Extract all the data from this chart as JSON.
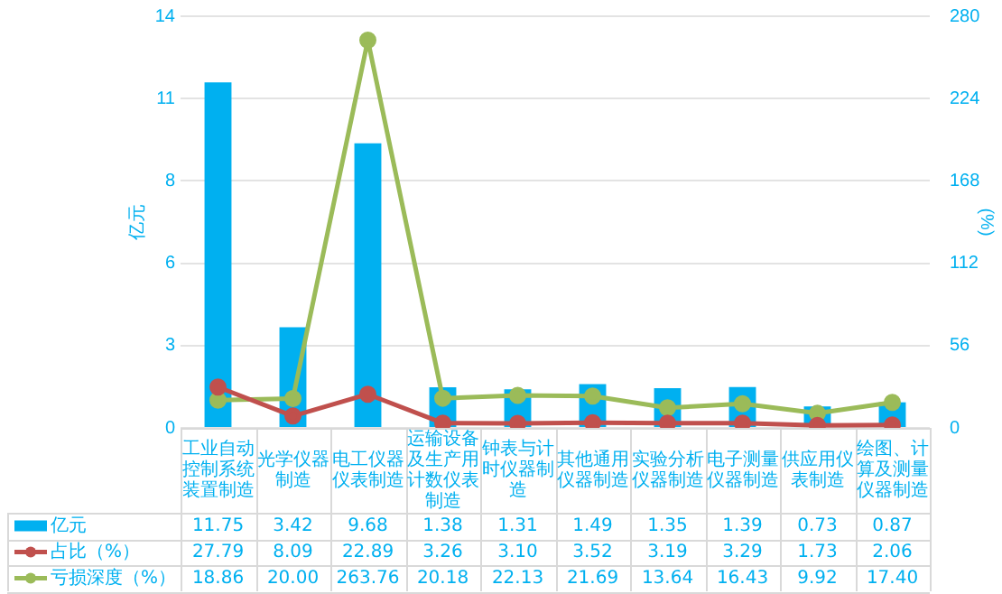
{
  "chart_data": {
    "type": "bar",
    "ylabel": "亿元",
    "y2label": "(%)",
    "categories": [
      "工业自动控制系统装置制造",
      "光学仪器制造",
      "电工仪器仪表制造",
      "运输设备及生产用计数仪表制造",
      "钟表与计时仪器制造",
      "其他通用仪器制造",
      "实验分析仪器制造",
      "电子测量仪器制造",
      "供应用仪表制造",
      "绘图、计算及测量仪器制造"
    ],
    "series": [
      {
        "name": "亿元",
        "color": "#00b0f0",
        "values": [
          11.75,
          3.42,
          9.68,
          1.38,
          1.31,
          1.49,
          1.35,
          1.39,
          0.73,
          0.87
        ],
        "value_labels": [
          "11.75",
          "3.42",
          "9.68",
          "1.38",
          "1.31",
          "1.49",
          "1.35",
          "1.39",
          "0.73",
          "0.87"
        ]
      },
      {
        "name": "占比（%）",
        "type": "line",
        "axis": "y2",
        "color": "#c0504d",
        "values": [
          27.79,
          8.09,
          22.89,
          3.26,
          3.1,
          3.52,
          3.19,
          3.29,
          1.73,
          2.06
        ],
        "value_labels": [
          "27.79",
          "8.09",
          "22.89",
          "3.26",
          "3.10",
          "3.52",
          "3.19",
          "3.29",
          "1.73",
          "2.06"
        ]
      },
      {
        "name": "亏损深度（%）",
        "type": "line",
        "axis": "y2",
        "color": "#9bbb59",
        "values": [
          18.86,
          20.0,
          263.76,
          20.18,
          22.13,
          21.69,
          13.64,
          16.43,
          9.92,
          17.4
        ],
        "value_labels": [
          "18.86",
          "20.00",
          "263.76",
          "20.18",
          "22.13",
          "21.69",
          "13.64",
          "16.43",
          "9.92",
          "17.40"
        ]
      }
    ],
    "ylim": [
      0,
      14
    ],
    "yticks": [
      0,
      {
        "value": 2.8,
        "label": "3"
      },
      {
        "value": 5.6,
        "label": "6"
      },
      {
        "value": 8.4,
        "label": "8"
      },
      {
        "value": 11.2,
        "label": "11"
      },
      14
    ],
    "y2lim": [
      0,
      280
    ],
    "y2ticks": [
      0,
      56,
      112,
      168,
      224,
      280
    ],
    "grid": "y",
    "legend": "bottom",
    "marker": "circle",
    "line_style": "solid"
  }
}
